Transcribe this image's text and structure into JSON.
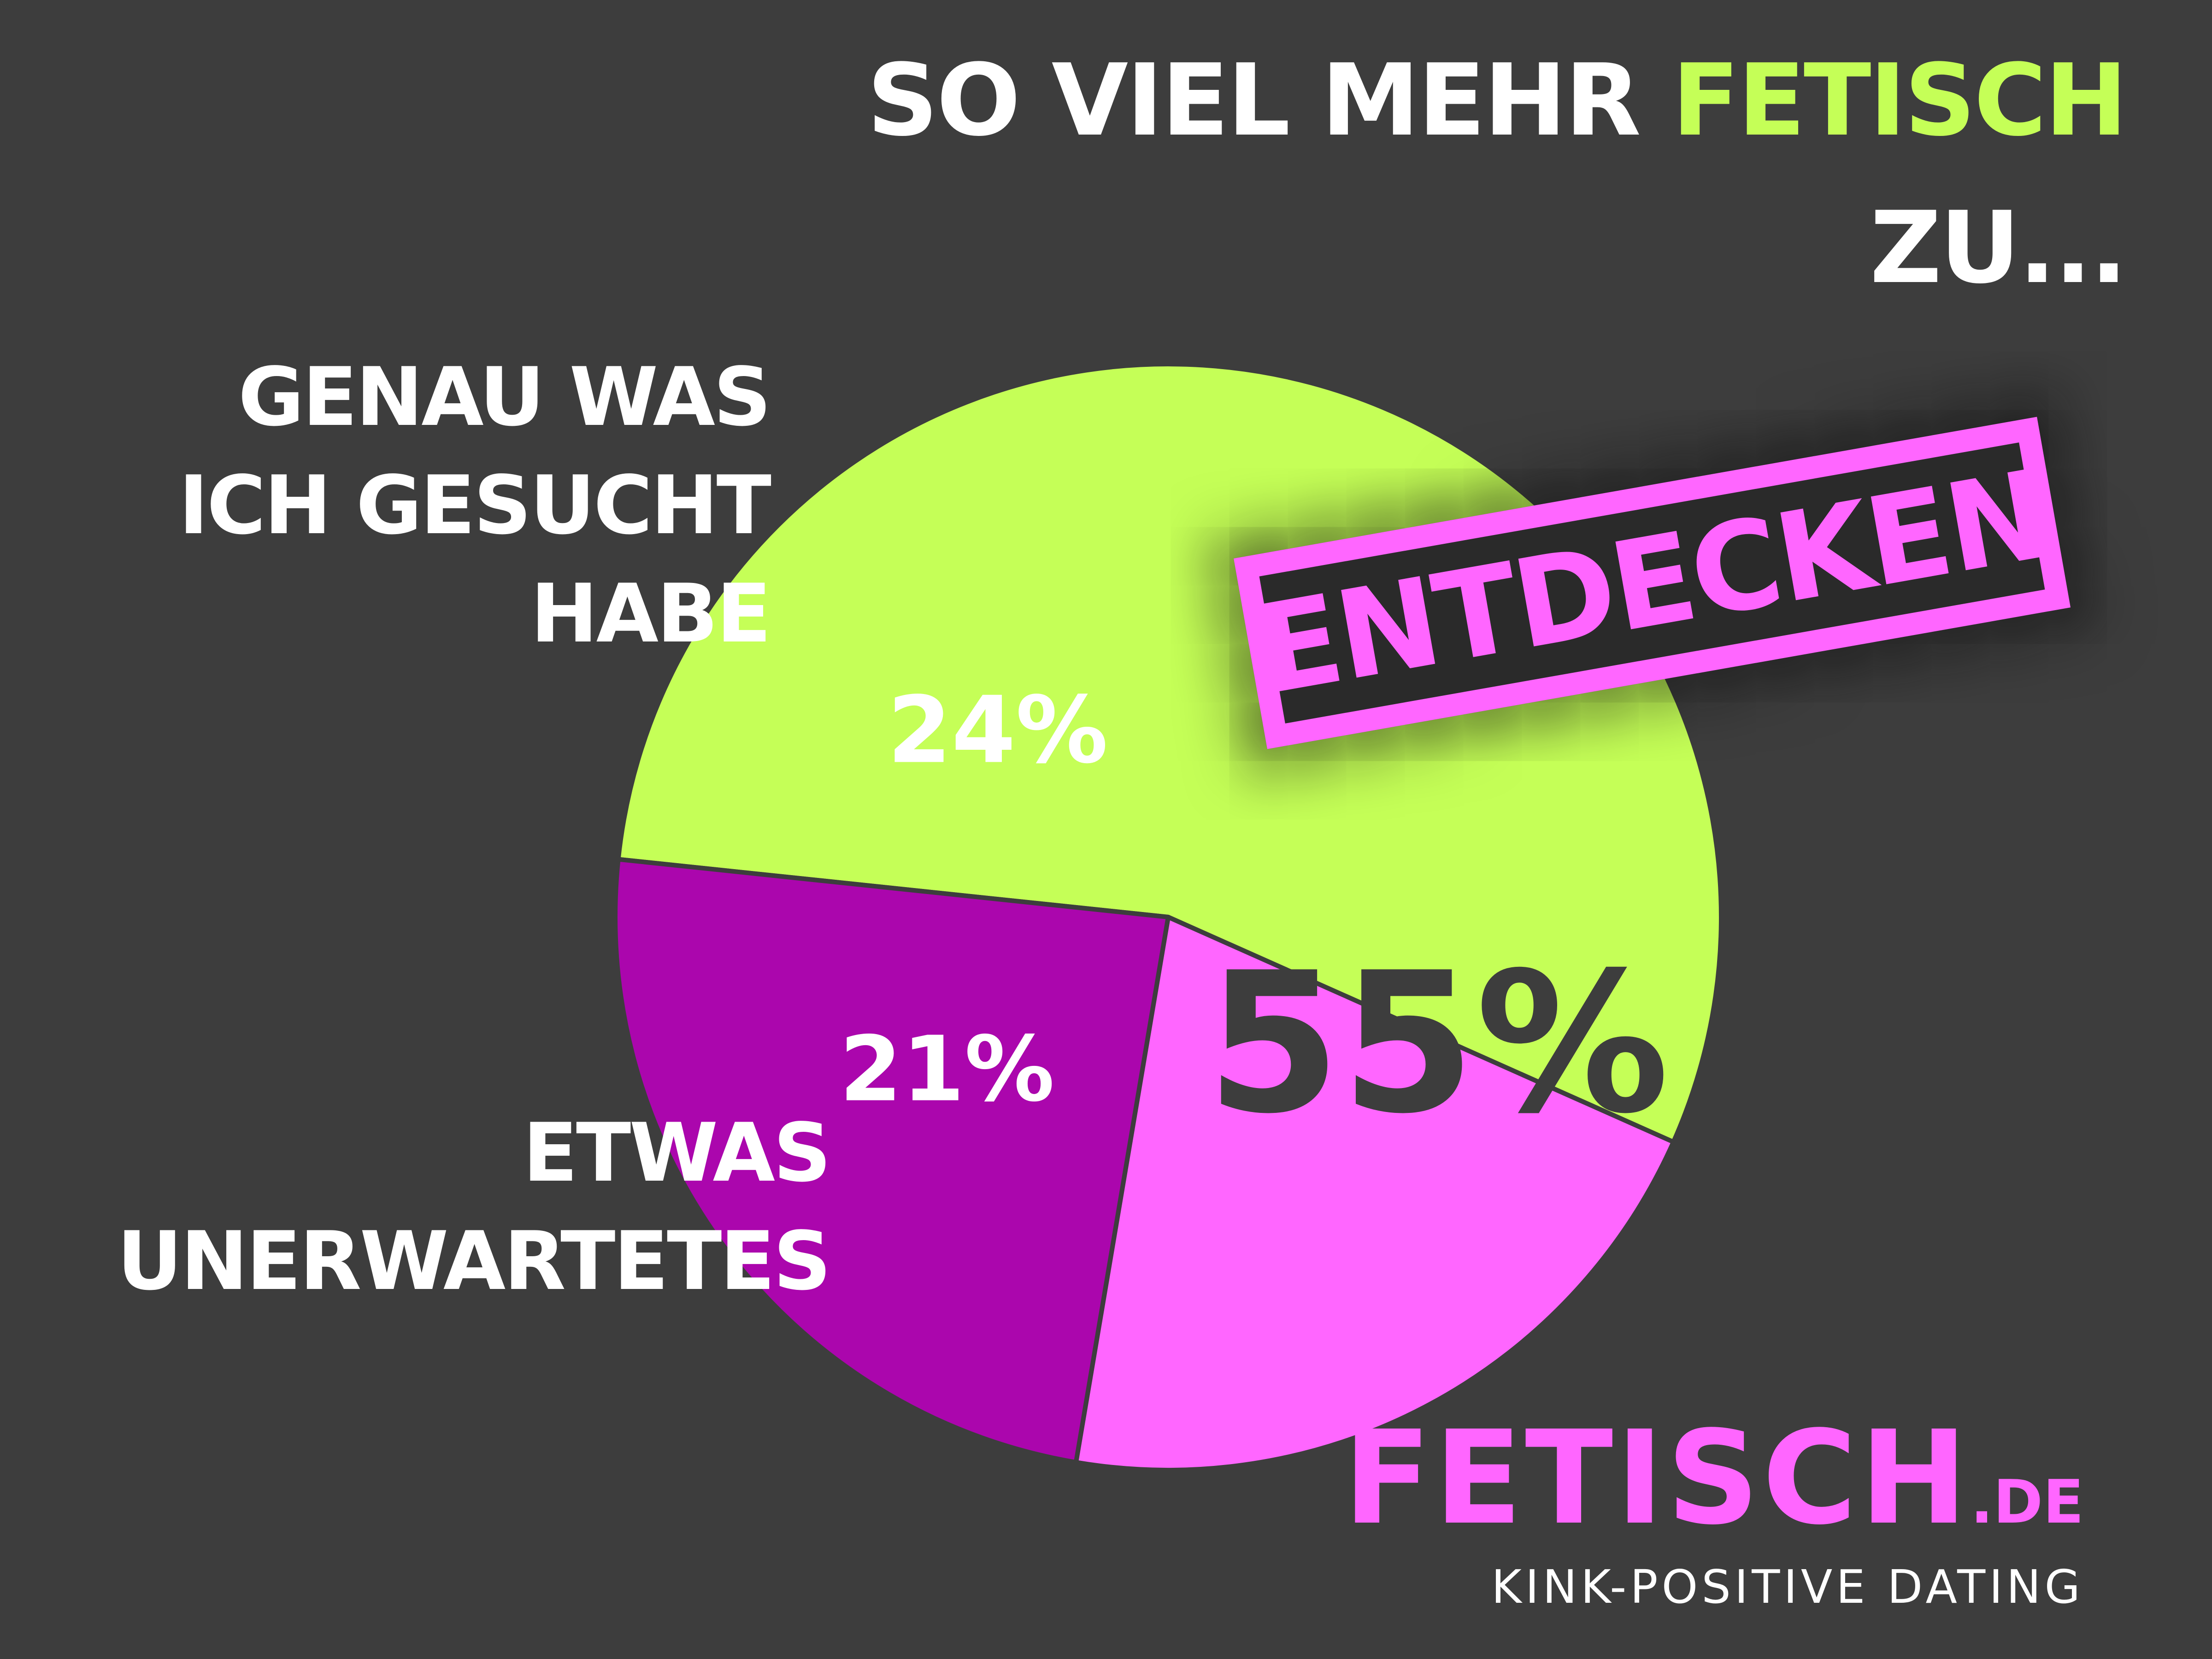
{
  "title": {
    "line1_prefix": "SO VIEL MEHR ",
    "line1_accent": "FETISCH",
    "line2": "ZU..."
  },
  "stamp_label": "ENTDECKEN",
  "brand": {
    "name": "FETISCH",
    "tld": ".DE",
    "tagline": "KINK-POSITIVE DATING"
  },
  "colors": {
    "background": "#3d3d3d",
    "green": "#c5ff57",
    "purple": "#ab06ad",
    "pink": "#ff66ff",
    "white": "#ffffff"
  },
  "chart_data": {
    "type": "pie",
    "slices": [
      {
        "label_lines": [],
        "value": 55,
        "value_label": "55%",
        "color": "#c5ff57"
      },
      {
        "label_lines": [
          "ETWAS",
          "UNERWARTETES"
        ],
        "value": 21,
        "value_label": "21%",
        "color": "#ff66ff"
      },
      {
        "label_lines": [
          "GENAU WAS",
          "ICH GESUCHT",
          "HABE"
        ],
        "value": 24,
        "value_label": "24%",
        "color": "#ab06ad"
      }
    ],
    "legend": "none"
  }
}
